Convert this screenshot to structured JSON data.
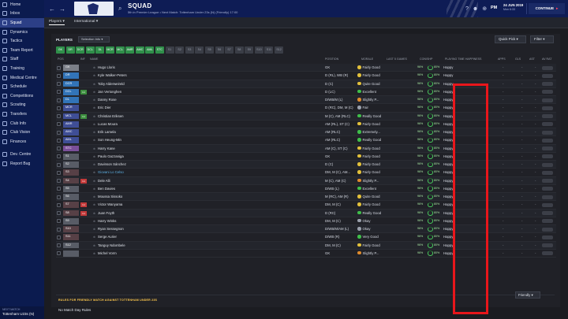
{
  "sidebar": {
    "items": [
      {
        "label": "Home",
        "active": false
      },
      {
        "label": "Inbox",
        "active": false
      },
      {
        "label": "Squad",
        "active": true
      },
      {
        "label": "Dynamics",
        "active": false
      },
      {
        "label": "Tactics",
        "active": false
      },
      {
        "label": "Team Report",
        "active": false
      },
      {
        "label": "Staff",
        "active": false
      },
      {
        "label": "Training",
        "active": false
      },
      {
        "label": "Medical Centre",
        "active": false
      },
      {
        "label": "Schedule",
        "active": false
      },
      {
        "label": "Competitions",
        "active": false
      },
      {
        "label": "Scouting",
        "active": false
      },
      {
        "label": "Transfers",
        "active": false
      },
      {
        "label": "Club Info",
        "active": false
      },
      {
        "label": "Club Vision",
        "active": false
      },
      {
        "label": "Finances",
        "active": false
      },
      {
        "label": "Dev. Centre",
        "active": false
      },
      {
        "label": "Report Bug",
        "active": false
      }
    ],
    "next_match_label": "NEXT MATCH",
    "next_match_value": "Tottenham U23s (N)"
  },
  "header": {
    "title": "SQUAD",
    "subtitle": "5th in Premier League • Next Match: Tottenham Under 23s (N) (Friendly) 17:00",
    "period": "PM",
    "date": "24 JUN 2019",
    "day": "Mon 6:33",
    "continue_label": "CONTINUE"
  },
  "subtabs": [
    {
      "label": "Players",
      "active": true
    },
    {
      "label": "International",
      "active": false
    }
  ],
  "toolbar": {
    "players_label": "PLAYERS",
    "selection_info": "Selection Info",
    "quick_pick": "Quick Pick",
    "filter": "Filter"
  },
  "position_chips": [
    {
      "label": "GK",
      "on": true
    },
    {
      "label": "DR",
      "on": true
    },
    {
      "label": "DCR",
      "on": true
    },
    {
      "label": "DCL",
      "on": true
    },
    {
      "label": "DL",
      "on": true
    },
    {
      "label": "MCR",
      "on": true
    },
    {
      "label": "MCL",
      "on": true
    },
    {
      "label": "AMR",
      "on": true
    },
    {
      "label": "AMC",
      "on": true
    },
    {
      "label": "AML",
      "on": true
    },
    {
      "label": "STC",
      "on": true
    },
    {
      "label": "S1",
      "on": false
    },
    {
      "label": "S2",
      "on": false
    },
    {
      "label": "S3",
      "on": false
    },
    {
      "label": "S4",
      "on": false
    },
    {
      "label": "S5",
      "on": false
    },
    {
      "label": "S6",
      "on": false
    },
    {
      "label": "S7",
      "on": false
    },
    {
      "label": "S8",
      "on": false
    },
    {
      "label": "S9",
      "on": false
    },
    {
      "label": "S10",
      "on": false
    },
    {
      "label": "S11",
      "on": false
    },
    {
      "label": "S12",
      "on": false
    }
  ],
  "columns": {
    "pos": "POS",
    "inf": "INF",
    "name": "NAME",
    "position": "POSITION",
    "morale": "MORALE",
    "last5": "LAST 5 GAMES",
    "cond_shp": "CON/SHP",
    "happiness": "PLAYING TIME HAPPINESS",
    "apps": "APPS",
    "gls": "GLS",
    "ast": "AST",
    "av_rat": "AV RAT"
  },
  "players": [
    {
      "pos": "GK",
      "group": "gk",
      "inf": "",
      "name": "Hugo Lloris",
      "position": "GK",
      "morale": "Fairly Good",
      "mcolor": "#e3c13b",
      "con": "96%",
      "shp": "80%",
      "happy": "Happy",
      "loan": false
    },
    {
      "pos": "DR",
      "group": "def",
      "inf": "",
      "name": "Kyle Walker-Peters",
      "position": "D (RL), WB (R)",
      "morale": "Fairly Good",
      "mcolor": "#e3c13b",
      "con": "96%",
      "shp": "80%",
      "happy": "Happy",
      "loan": false
    },
    {
      "pos": "DCR",
      "group": "def",
      "inf": "",
      "name": "Toby Alderweireld",
      "position": "D (C)",
      "morale": "Quite Good",
      "mcolor": "#e3c13b",
      "con": "96%",
      "shp": "80%",
      "happy": "Happy",
      "loan": false
    },
    {
      "pos": "DCL",
      "group": "def",
      "inf": "Int",
      "name": "Jan Vertonghen",
      "position": "D (LC)",
      "morale": "Excellent",
      "mcolor": "#3fbf4a",
      "con": "96%",
      "shp": "80%",
      "happy": "Happy",
      "loan": false
    },
    {
      "pos": "DL",
      "group": "def",
      "inf": "",
      "name": "Danny Rose",
      "position": "D/WB/M (L)",
      "morale": "Slightly P...",
      "mcolor": "#e08b2c",
      "con": "96%",
      "shp": "80%",
      "happy": "Happy",
      "loan": false
    },
    {
      "pos": "MCR",
      "group": "mid",
      "inf": "",
      "name": "Eric Dier",
      "position": "D (RC), DM, M (C)",
      "morale": "Fair",
      "mcolor": "#9aa0ac",
      "con": "96%",
      "shp": "80%",
      "happy": "Happy",
      "loan": false
    },
    {
      "pos": "MCL",
      "group": "mid",
      "inf": "Int",
      "name": "Christian Eriksen",
      "position": "M (C), AM (RLC)",
      "morale": "Really Good",
      "mcolor": "#3fbf4a",
      "con": "96%",
      "shp": "80%",
      "happy": "Happy",
      "loan": false
    },
    {
      "pos": "AMR",
      "group": "mid",
      "inf": "",
      "name": "Lucas Moura",
      "position": "AM (RL), ST (C)",
      "morale": "Fairly Good",
      "mcolor": "#e3c13b",
      "con": "96%",
      "shp": "80%",
      "happy": "Happy",
      "loan": false
    },
    {
      "pos": "AMC",
      "group": "mid",
      "inf": "",
      "name": "Erik Lamela",
      "position": "AM (RLC)",
      "morale": "Extremely...",
      "mcolor": "#3fbf4a",
      "con": "96%",
      "shp": "80%",
      "happy": "Happy",
      "loan": false
    },
    {
      "pos": "AML",
      "group": "mid",
      "inf": "",
      "name": "Son Heung-Min",
      "position": "AM (RLC)",
      "morale": "Really Good",
      "mcolor": "#3fbf4a",
      "con": "96%",
      "shp": "80%",
      "happy": "Happy",
      "loan": false
    },
    {
      "pos": "STC",
      "group": "st",
      "inf": "",
      "name": "Harry Kane",
      "position": "AM (C), ST (C)",
      "morale": "Fairly Good",
      "mcolor": "#e3c13b",
      "con": "96%",
      "shp": "80%",
      "happy": "Happy",
      "loan": false
    },
    {
      "pos": "S1",
      "group": "sub",
      "inf": "",
      "name": "Paulo Gazzaniga",
      "position": "GK",
      "morale": "Fairly Good",
      "mcolor": "#e3c13b",
      "con": "96%",
      "shp": "80%",
      "happy": "Happy",
      "loan": false
    },
    {
      "pos": "S2",
      "group": "sub",
      "inf": "",
      "name": "Davinson Sánchez",
      "position": "D (C)",
      "morale": "Fairly Good",
      "mcolor": "#e3c13b",
      "con": "96%",
      "shp": "80%",
      "happy": "Happy",
      "loan": false
    },
    {
      "pos": "S3",
      "group": "res",
      "inf": "",
      "name": "Giovani Lo Celso",
      "position": "DM, M (C), AM...",
      "morale": "Fairly Good",
      "mcolor": "#e3c13b",
      "con": "96%",
      "shp": "80%",
      "happy": "Happy",
      "loan": true
    },
    {
      "pos": "S4",
      "group": "res",
      "inf": "Int",
      "name": "Dele Alli",
      "position": "M (C), AM (C)",
      "morale": "Slightly P...",
      "mcolor": "#e08b2c",
      "con": "96%",
      "shp": "80%",
      "happy": "Happy",
      "loan": false
    },
    {
      "pos": "S5",
      "group": "sub",
      "inf": "",
      "name": "Ben Davies",
      "position": "D/WB (L)",
      "morale": "Excellent",
      "mcolor": "#3fbf4a",
      "con": "96%",
      "shp": "80%",
      "happy": "Happy",
      "loan": false
    },
    {
      "pos": "S6",
      "group": "sub",
      "inf": "",
      "name": "Moussa Sissoko",
      "position": "M (RC), AM (R)",
      "morale": "Quite Good",
      "mcolor": "#e3c13b",
      "con": "96%",
      "shp": "80%",
      "happy": "Happy",
      "loan": false
    },
    {
      "pos": "S7",
      "group": "res",
      "inf": "Int",
      "name": "Victor Wanyama",
      "position": "DM, M (C)",
      "morale": "Fairly Good",
      "mcolor": "#e3c13b",
      "con": "96%",
      "shp": "80%",
      "happy": "Happy",
      "loan": false
    },
    {
      "pos": "S8",
      "group": "res",
      "inf": "Int",
      "name": "Juan Foyth",
      "position": "D (RC)",
      "morale": "Really Good",
      "mcolor": "#3fbf4a",
      "con": "96%",
      "shp": "80%",
      "happy": "Happy",
      "loan": false
    },
    {
      "pos": "S9",
      "group": "sub",
      "inf": "",
      "name": "Harry Winks",
      "position": "DM, M (C)",
      "morale": "Okay",
      "mcolor": "#9aa0ac",
      "con": "96%",
      "shp": "80%",
      "happy": "Happy",
      "loan": false
    },
    {
      "pos": "S10",
      "group": "res",
      "inf": "",
      "name": "Ryan Sessegnon",
      "position": "D/WB/M/AM (L)",
      "morale": "Okay",
      "mcolor": "#9aa0ac",
      "con": "96%",
      "shp": "80%",
      "happy": "Happy",
      "loan": false
    },
    {
      "pos": "S11",
      "group": "res",
      "inf": "",
      "name": "Serge Aurier",
      "position": "D/WB (R)",
      "morale": "Very Good",
      "mcolor": "#3fbf4a",
      "con": "96%",
      "shp": "80%",
      "happy": "Happy",
      "loan": false
    },
    {
      "pos": "S12",
      "group": "sub",
      "inf": "",
      "name": "Tanguy Ndombele",
      "position": "DM, M (C)",
      "morale": "Fairly Good",
      "mcolor": "#e3c13b",
      "con": "96%",
      "shp": "80%",
      "happy": "Happy",
      "loan": false
    },
    {
      "pos": "",
      "group": "sub",
      "inf": "",
      "name": "Michel Vorm",
      "position": "GK",
      "morale": "Slightly P...",
      "mcolor": "#e08b2c",
      "con": "96%",
      "shp": "80%",
      "happy": "Happy",
      "loan": false
    }
  ],
  "dash": "-",
  "rules": {
    "title": "RULES FOR FRIENDLY MATCH AGAINST TOTTENHAM UNDER 23S",
    "text": "No Match Day Rules",
    "match_type": "Friendly"
  },
  "colors": {
    "sidebar_bg": "#0b1b4f",
    "header_bg": "#0e1c55",
    "chip_on": "#2f8f4a",
    "highlight": "#e8161b",
    "condition_ring": "#49c85d",
    "accent_arrow": "#ff3e5a"
  }
}
